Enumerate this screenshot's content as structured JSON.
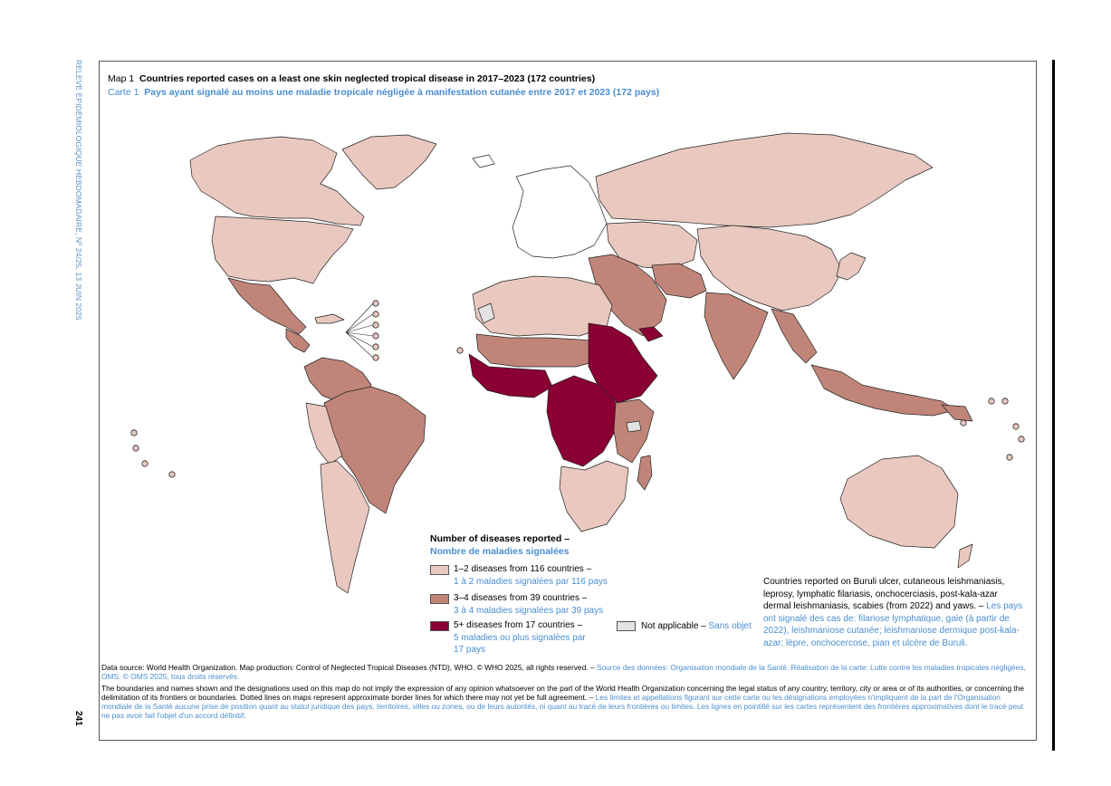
{
  "running_head": "RELEVÉ ÉPIDÉMIOLOGIQUE HEBDOMADAIRE, Nº 24/25, 13 JUIN 2025",
  "page_number": "241",
  "title": {
    "en_prefix": "Map 1",
    "en_text": "Countries reported cases on a least one skin neglected tropical disease in 2017–2023 (172 countries)",
    "fr_prefix": "Carte 1",
    "fr_text": "Pays ayant signalé au moins une maladie tropicale négligée à manifestation cutanée entre 2017 et 2023 (172 pays)"
  },
  "colors": {
    "cat_1_2": "#e8c8bf",
    "cat_3_4": "#c08578",
    "cat_5_plus": "#8b0033",
    "not_applicable": "#e2e2e2",
    "ocean": "#ffffff",
    "border": "#222222",
    "french_text": "#4a8ed0"
  },
  "legend": {
    "title_en": "Number of diseases reported –",
    "title_fr": "Nombre de maladies signalées",
    "items": [
      {
        "en": "1–2 diseases from 116 countries –",
        "fr": "1 à 2 maladies signalées par 116 pays",
        "fr2": "",
        "color": "#e8c8bf"
      },
      {
        "en": "3–4 diseases from 39 countries –",
        "fr": "3 à 4 maladies signalées par 39 pays",
        "fr2": "",
        "color": "#c08578"
      },
      {
        "en": "5+ diseases from 17 countries –",
        "fr": "5 maladies ou plus signalées par",
        "fr2": "17 pays",
        "color": "#8b0033"
      }
    ],
    "not_applicable_en": "Not applicable –",
    "not_applicable_fr": "Sans objet"
  },
  "note": {
    "en": "Countries reported on Buruli ulcer, cutaneous leishmaniasis, leprosy, lymphatic filariasis, onchocerciasis, post-kala-azar dermal leishmaniasis, scabies (from 2022) and yaws.",
    "sep": " – ",
    "fr": "Les pays ont signalé des cas de: filariose lymphatique, gale (à partir de 2022), leishmaniose cutanée; leishmaniose dermique post-kala-azar; lèpre, onchocercose, pian et ulcère de Buruli."
  },
  "source": {
    "en": "Data source: World Health Organization. Map production: Control of Neglected Tropical Diseases (NTD), WHO. © WHO 2025, all rights reserved.",
    "sep": " – ",
    "fr": "Source des données: Organisation mondiale de la Santé. Réalisation de la carte: Lutte contre les maladies tropicales négligées, OMS. © OMS 2025, tous droits réservés."
  },
  "disclaimer": {
    "en": "The boundaries and names shown and the designations used on this map do not imply the expression of any opinion whatsoever on the part of the World Health Organization concerning the legal status of any country, territory, city or area or of its authorities, or concerning the delimitation of its frontiers or boundaries. Dotted lines on maps represent approximate border lines for which there may not yet be full agreement.",
    "sep": " – ",
    "fr": "Les limites et appellations figurant sur cette carte ou les désignations employées n'impliquent de la part de l'Organisation mondiale de la Santé aucune prise de position quant au statut juridique des pays, territoires, villes ou zones, ou de leurs autorités, ni quant au tracé de leurs frontières ou limites. Les lignes en pointillé sur les cartes représentent des frontières approximatives dont le tracé peut ne pas avoir fait l'objet d'un accord définitif."
  }
}
